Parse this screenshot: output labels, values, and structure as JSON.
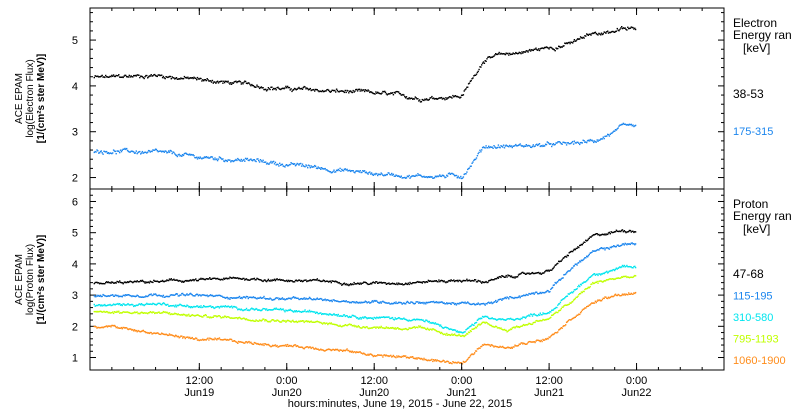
{
  "chart_data": [
    {
      "type": "scatter",
      "panel": "electron",
      "ylabel": [
        "ACE EPAM",
        "log(Electron Flux)",
        "[1/(cm²s ster MeV)]"
      ],
      "ylim": [
        1.75,
        5.7
      ],
      "yticks": [
        "2",
        "3",
        "4",
        "5"
      ],
      "legend_title": [
        "Electron",
        "Energy ran",
        "[keV]"
      ],
      "legend_placement": "right",
      "x": [
        "Jun19 00:00",
        "Jun19 06:00",
        "Jun19 12:00",
        "Jun19 18:00",
        "Jun20 00:00",
        "Jun20 06:00",
        "Jun20 12:00",
        "Jun20 18:00",
        "Jun21 00:00",
        "Jun21 03:00",
        "Jun21 06:00",
        "Jun21 12:00",
        "Jun21 15:00",
        "Jun21 18:00",
        "Jun21 22:00"
      ],
      "series": [
        {
          "name": "38-53",
          "color": "#000000",
          "values": [
            4.2,
            4.25,
            4.15,
            4.05,
            3.95,
            3.9,
            3.85,
            3.75,
            3.8,
            4.6,
            4.7,
            4.85,
            4.95,
            5.15,
            5.25
          ]
        },
        {
          "name": "175-315",
          "color": "#1c86ee",
          "values": [
            2.6,
            2.55,
            2.45,
            2.4,
            2.3,
            2.2,
            2.1,
            2.05,
            2.05,
            2.7,
            2.7,
            2.72,
            2.75,
            2.8,
            3.1
          ]
        }
      ]
    },
    {
      "type": "scatter",
      "panel": "proton",
      "ylabel": [
        "ACE EPAM",
        "log(Proton Flux)",
        "[1/(cm²s ster MeV)]"
      ],
      "ylim": [
        0.6,
        6.4
      ],
      "yticks": [
        "1",
        "2",
        "3",
        "4",
        "5",
        "6"
      ],
      "legend_title": [
        "Proton",
        "Energy ran",
        "[keV]"
      ],
      "legend_placement": "right",
      "x": [
        "Jun19 00:00",
        "Jun19 06:00",
        "Jun19 12:00",
        "Jun19 18:00",
        "Jun20 00:00",
        "Jun20 06:00",
        "Jun20 12:00",
        "Jun20 18:00",
        "Jun21 00:00",
        "Jun21 03:00",
        "Jun21 06:00",
        "Jun21 12:00",
        "Jun21 15:00",
        "Jun21 18:00",
        "Jun21 22:00"
      ],
      "series": [
        {
          "name": "47-68",
          "color": "#000000",
          "values": [
            3.4,
            3.45,
            3.5,
            3.55,
            3.5,
            3.45,
            3.4,
            3.45,
            3.5,
            3.45,
            3.6,
            3.8,
            4.4,
            4.9,
            5.1
          ]
        },
        {
          "name": "115-195",
          "color": "#1c86ee",
          "values": [
            3.0,
            3.05,
            3.0,
            2.95,
            2.9,
            2.85,
            2.8,
            2.8,
            2.75,
            2.7,
            2.9,
            3.2,
            3.9,
            4.4,
            4.65
          ]
        },
        {
          "name": "310-580",
          "color": "#00e5ee",
          "values": [
            2.7,
            2.75,
            2.65,
            2.6,
            2.5,
            2.45,
            2.3,
            2.25,
            1.8,
            2.3,
            2.2,
            2.5,
            3.1,
            3.7,
            3.9
          ]
        },
        {
          "name": "795-1193",
          "color": "#c0ff00",
          "values": [
            2.5,
            2.45,
            2.35,
            2.3,
            2.2,
            2.1,
            2.0,
            1.95,
            1.7,
            2.1,
            1.9,
            2.3,
            2.8,
            3.4,
            3.6
          ]
        },
        {
          "name": "1060-1900",
          "color": "#ff8c1a",
          "values": [
            2.0,
            1.8,
            1.6,
            1.5,
            1.4,
            1.3,
            1.1,
            1.0,
            0.8,
            1.5,
            1.3,
            1.7,
            2.3,
            2.8,
            3.05
          ]
        }
      ]
    }
  ],
  "xaxis": {
    "ticks": [
      {
        "x": "Jun19 12:00",
        "time": "12:00",
        "day": "Jun19"
      },
      {
        "x": "Jun20 00:00",
        "time": "0:00",
        "day": "Jun20"
      },
      {
        "x": "Jun20 12:00",
        "time": "12:00",
        "day": "Jun20"
      },
      {
        "x": "Jun21 00:00",
        "time": "0:00",
        "day": "Jun21"
      },
      {
        "x": "Jun21 12:00",
        "time": "12:00",
        "day": "Jun21"
      },
      {
        "x": "Jun22 00:00",
        "time": "0:00",
        "day": "Jun22"
      }
    ],
    "label": "hours:minutes, June 19, 2015 - June 22, 2015",
    "xlim": [
      "Jun18 21:00",
      "Jun22 12:00"
    ]
  }
}
